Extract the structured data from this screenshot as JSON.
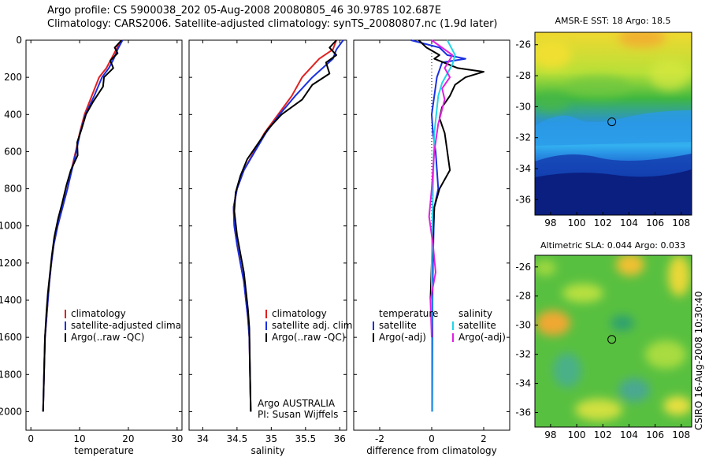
{
  "header": {
    "line1": "Argo profile: CS 5900038_202 05-Aug-2008 20080805_46 30.978S 102.687E",
    "line2": "Climatology: CARS2006. Satellite-adjusted climatology: synTS_20080807.nc (1.9d later)"
  },
  "footer": {
    "credit": "CSIRO 16-Aug-2008 10:30:40"
  },
  "colors": {
    "climatology": "#e02020",
    "satellite": "#1a2fe0",
    "argo": "#000000",
    "sat_salinity": "#22d6e8",
    "argo_adj_salinity": "#e020e0"
  },
  "chart_data": [
    {
      "type": "line",
      "xlabel": "temperature",
      "ylabel": "",
      "xlim": [
        -1,
        31
      ],
      "ylim": [
        2100,
        0
      ],
      "y_reversed": true,
      "xticks": [
        0,
        10,
        20,
        30
      ],
      "yticks": [
        0,
        200,
        400,
        600,
        800,
        1000,
        1200,
        1400,
        1600,
        1800,
        2000
      ],
      "legend": {
        "position": "bottom-right",
        "entries": [
          "climatology",
          "satellite-adjusted climatology",
          "Argo(..raw -QC)"
        ]
      },
      "annotation": "",
      "series": [
        {
          "name": "climatology",
          "color": "#e02020",
          "x": [
            18.5,
            17.5,
            16.5,
            15.5,
            14,
            12.5,
            11,
            10,
            9.2,
            8.3,
            7.5,
            6.5,
            5.5,
            4.7,
            4.2,
            3.8,
            3.5,
            3.2,
            2.9,
            2.7,
            2.5
          ],
          "y": [
            0,
            50,
            100,
            150,
            200,
            300,
            400,
            500,
            600,
            700,
            800,
            900,
            1000,
            1100,
            1200,
            1300,
            1400,
            1500,
            1600,
            1800,
            2000
          ]
        },
        {
          "name": "satellite-adjusted climatology",
          "color": "#1a2fe0",
          "x": [
            18.8,
            17.8,
            17,
            16,
            14.6,
            13,
            11.2,
            10.1,
            9.3,
            8.4,
            7.5,
            6.5,
            5.5,
            4.7,
            4.2,
            3.8,
            3.5,
            3.2,
            2.9,
            2.7,
            2.5
          ],
          "y": [
            0,
            50,
            100,
            150,
            200,
            300,
            400,
            500,
            600,
            700,
            800,
            900,
            1000,
            1100,
            1200,
            1300,
            1400,
            1500,
            1600,
            1800,
            2000
          ]
        },
        {
          "name": "Argo(..raw -QC)",
          "color": "#000000",
          "x": [
            18.6,
            17.2,
            17.8,
            16.3,
            16.9,
            15,
            14.8,
            12.8,
            11.3,
            10.4,
            9.5,
            9.6,
            8.2,
            7.3,
            6.4,
            5.6,
            4.8,
            4.3,
            3.9,
            3.5,
            3.2,
            2.9,
            2.7,
            2.5
          ],
          "y": [
            0,
            40,
            70,
            110,
            150,
            200,
            250,
            330,
            400,
            480,
            550,
            620,
            700,
            780,
            880,
            960,
            1060,
            1160,
            1260,
            1360,
            1460,
            1600,
            1800,
            2000
          ]
        }
      ]
    },
    {
      "type": "line",
      "xlabel": "salinity",
      "ylabel": "",
      "xlim": [
        33.8,
        36.1
      ],
      "ylim": [
        2100,
        0
      ],
      "y_reversed": true,
      "xticks": [
        34,
        34.5,
        35,
        35.5,
        36
      ],
      "yticks": [],
      "legend": {
        "position": "bottom-right",
        "entries": [
          "climatology",
          "satellite adj. clim.",
          "Argo(..raw -QC)"
        ]
      },
      "annotation": "Argo AUSTRALIA\nPI: Susan Wijffels",
      "series": [
        {
          "name": "climatology",
          "color": "#e02020",
          "x": [
            35.95,
            35.9,
            35.7,
            35.45,
            35.3,
            35.1,
            34.9,
            34.75,
            34.6,
            34.5,
            34.45,
            34.46,
            34.5,
            34.55,
            34.6,
            34.63,
            34.66,
            34.68,
            34.69,
            34.7
          ],
          "y": [
            0,
            50,
            100,
            200,
            300,
            400,
            500,
            600,
            700,
            800,
            900,
            1000,
            1100,
            1200,
            1300,
            1400,
            1500,
            1600,
            1800,
            2000
          ]
        },
        {
          "name": "satellite adj. clim.",
          "color": "#1a2fe0",
          "x": [
            36.05,
            35.95,
            35.9,
            35.6,
            35.35,
            35.12,
            34.92,
            34.76,
            34.6,
            34.5,
            34.45,
            34.46,
            34.5,
            34.55,
            34.6,
            34.63,
            34.66,
            34.68,
            34.69,
            34.7
          ],
          "y": [
            0,
            50,
            100,
            200,
            300,
            400,
            500,
            600,
            700,
            800,
            900,
            1000,
            1100,
            1200,
            1300,
            1400,
            1500,
            1600,
            1800,
            2000
          ]
        },
        {
          "name": "Argo(..raw -QC)",
          "color": "#000000",
          "x": [
            35.95,
            35.85,
            35.95,
            35.8,
            35.85,
            35.6,
            35.45,
            35.15,
            34.95,
            34.8,
            34.65,
            34.55,
            34.48,
            34.46,
            34.5,
            34.55,
            34.6,
            34.63,
            34.66,
            34.68,
            34.69,
            34.7
          ],
          "y": [
            0,
            40,
            80,
            120,
            180,
            240,
            320,
            400,
            480,
            560,
            640,
            730,
            820,
            920,
            1050,
            1150,
            1250,
            1350,
            1450,
            1550,
            1800,
            2000
          ]
        }
      ]
    },
    {
      "type": "line",
      "xlabel": "difference from climatology",
      "ylabel": "",
      "xlim": [
        -3,
        3
      ],
      "ylim": [
        2100,
        0
      ],
      "y_reversed": true,
      "xticks": [
        -2,
        0,
        2
      ],
      "yticks": [],
      "reference_line": {
        "x": 0,
        "style": "dotted",
        "span": [
          0,
          1600
        ]
      },
      "legend": {
        "position": "bottom",
        "groups": [
          {
            "title": "temperature",
            "entries": [
              "satellite",
              "Argo(-adj)"
            ]
          },
          {
            "title": "salinity",
            "entries": [
              "satellite",
              "Argo(-adj)"
            ]
          }
        ]
      },
      "series": [
        {
          "name": "satellite",
          "group": "temperature",
          "color": "#1a2fe0",
          "x": [
            -0.8,
            0.3,
            0.6,
            1.3,
            0.4,
            0.2,
            0.1,
            0.0,
            0.05,
            0.15,
            0.25,
            0.1,
            0.08,
            0.05,
            0.03,
            0.03,
            0.02
          ],
          "y": [
            0,
            40,
            80,
            100,
            120,
            200,
            300,
            400,
            500,
            600,
            800,
            900,
            1000,
            1200,
            1400,
            1600,
            2000
          ]
        },
        {
          "name": "Argo(-adj)",
          "group": "temperature",
          "color": "#000000",
          "x": [
            -0.5,
            -0.2,
            0.3,
            0.1,
            1.0,
            2.0,
            1.3,
            0.9,
            0.7,
            0.4,
            0.3,
            0.5,
            0.6,
            0.7,
            0.3,
            0.1,
            0.0,
            -0.05
          ],
          "y": [
            0,
            40,
            80,
            100,
            150,
            170,
            200,
            240,
            300,
            360,
            420,
            500,
            600,
            700,
            800,
            900,
            1200,
            1400
          ]
        },
        {
          "name": "satellite",
          "group": "salinity",
          "color": "#22d6e8",
          "x": [
            0.6,
            0.9,
            0.8,
            0.6,
            0.4,
            0.25,
            0.1,
            0.05,
            0.0,
            0.0
          ],
          "y": [
            0,
            80,
            130,
            180,
            230,
            300,
            500,
            800,
            1200,
            2000
          ]
        },
        {
          "name": "Argo(-adj)",
          "group": "salinity",
          "color": "#e020e0",
          "x": [
            0.0,
            0.8,
            0.5,
            0.7,
            0.4,
            0.5,
            0.25,
            0.1,
            0.0,
            -0.1,
            0.05,
            0.15,
            -0.05,
            0.0
          ],
          "y": [
            0,
            80,
            150,
            200,
            260,
            320,
            450,
            600,
            800,
            950,
            1100,
            1250,
            1400,
            1600
          ]
        }
      ]
    },
    {
      "type": "heatmap",
      "title": "AMSR-E SST: 18 Argo: 18.5",
      "xlim": [
        96.8,
        108.8
      ],
      "ylim": [
        -37,
        -25.2
      ],
      "xticks": [
        98,
        100,
        102,
        104,
        106,
        108
      ],
      "yticks": [
        -26,
        -28,
        -30,
        -32,
        -34,
        -36
      ],
      "marker": {
        "lon": 102.687,
        "lat": -30.978
      }
    },
    {
      "type": "heatmap",
      "title": "Altimetric SLA: 0.044 Argo: 0.033",
      "xlim": [
        96.8,
        108.8
      ],
      "ylim": [
        -37,
        -25.2
      ],
      "xticks": [
        98,
        100,
        102,
        104,
        106,
        108
      ],
      "yticks": [
        -26,
        -28,
        -30,
        -32,
        -34,
        -36
      ],
      "marker": {
        "lon": 102.687,
        "lat": -30.978
      }
    }
  ]
}
